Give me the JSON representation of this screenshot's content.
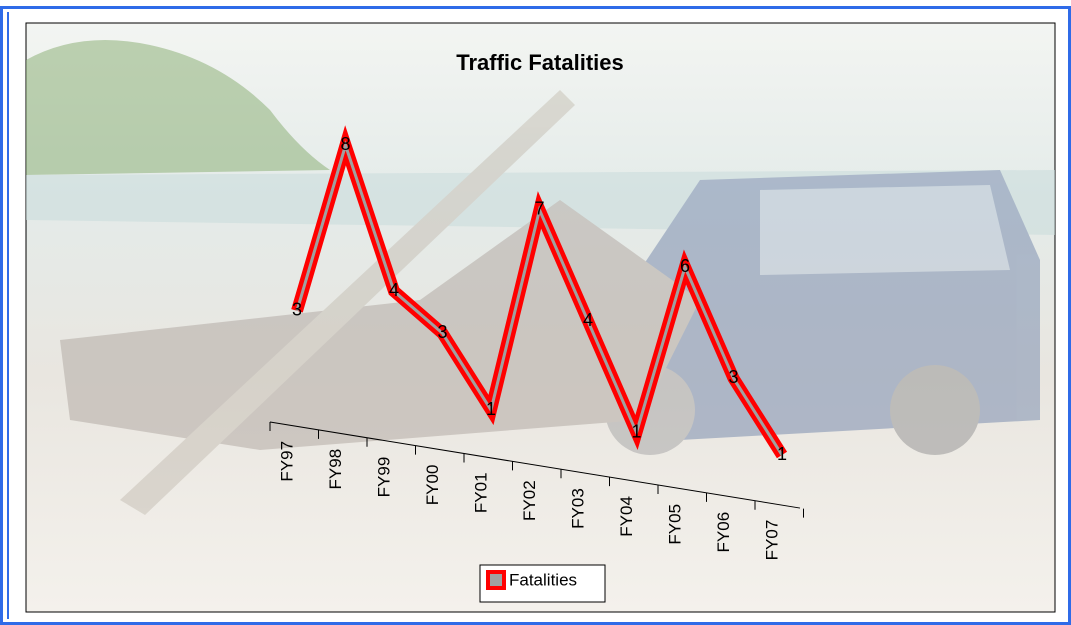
{
  "chart_data": {
    "type": "line",
    "title": "Traffic Fatalities",
    "categories": [
      "FY97",
      "FY98",
      "FY99",
      "FY00",
      "FY01",
      "FY02",
      "FY03",
      "FY04",
      "FY05",
      "FY06",
      "FY07"
    ],
    "series": [
      {
        "name": "Fatalities",
        "color": "#ff0000",
        "values": [
          3,
          8,
          4,
          3,
          1,
          7,
          4,
          1,
          6,
          3,
          1
        ]
      }
    ],
    "legend": "bottom"
  }
}
